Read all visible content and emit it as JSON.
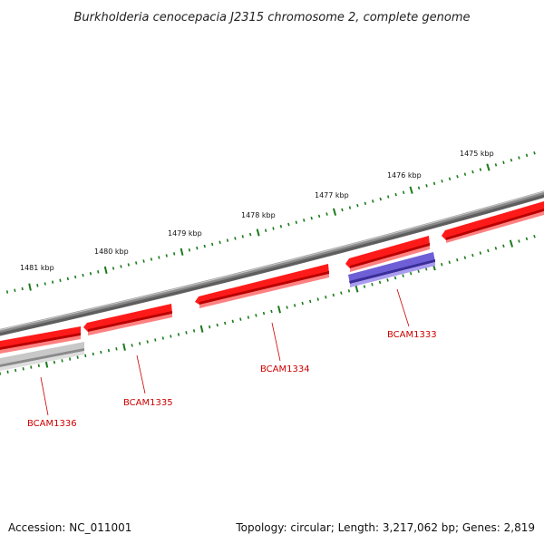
{
  "title": "Burkholderia cenocepacia J2315 chromosome 2, complete genome",
  "kbp_labels": [
    "1481 kbp",
    "1480 kbp",
    "1479 kbp",
    "1478 kbp",
    "1477 kbp",
    "1476 kbp",
    "1475 kbp"
  ],
  "gene_labels": [
    "BCAM1336",
    "BCAM1335",
    "BCAM1334",
    "BCAM1333"
  ],
  "footer": {
    "accession": "Accession: NC_011001",
    "summary": "Topology: circular; Length: 3,217,062 bp; Genes: 2,819"
  },
  "colors": {
    "backbone": "#808080",
    "forward_gene": "#ff0000",
    "reverse_gene_red": "#ff2020",
    "reverse_gene_blue": "#7060d0",
    "reverse_gene_gray": "#b8b8b8",
    "ticks": "#1a7a1a",
    "label_red": "#cc0000"
  }
}
